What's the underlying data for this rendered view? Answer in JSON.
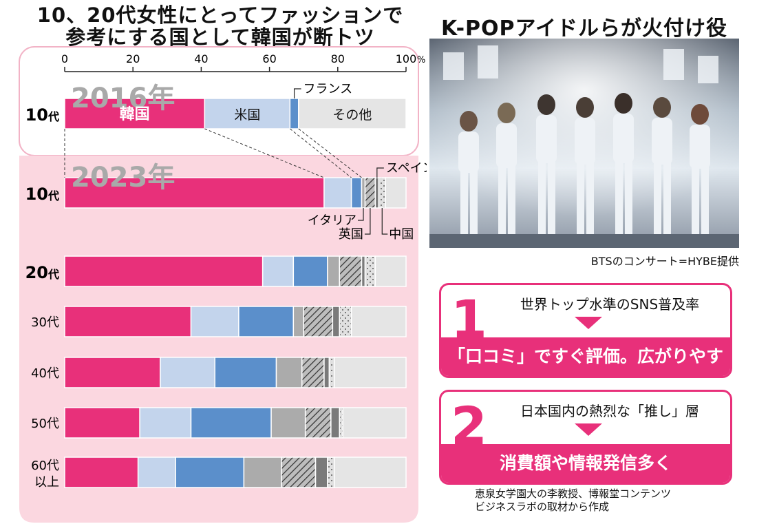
{
  "title": {
    "line1": "10、20代女性にとってファッションで",
    "line2": "参考にする国として韓国が断トツ"
  },
  "colors": {
    "korea": "#e8307a",
    "usa": "#c3d4ec",
    "france": "#5b8fcb",
    "italy": "#ababab",
    "uk": "#9a9a9a",
    "china": "#d8d8d8",
    "other": "#e5e5e5",
    "panel": "#fbd7e0",
    "accent": "#e8307a"
  },
  "chart_data": {
    "type": "bar",
    "orientation": "horizontal",
    "stacked": true,
    "xlim": [
      0,
      100
    ],
    "x_ticks": [
      "0",
      "20",
      "40",
      "60",
      "80",
      "100"
    ],
    "x_unit": "%",
    "year_labels": [
      "2016年",
      "2023年"
    ],
    "segments": [
      "韓国",
      "米国",
      "フランス",
      "イタリア",
      "英国",
      "スペイン",
      "中国",
      "その他"
    ],
    "segment_colors": [
      "#e8307a",
      "#c3d4ec",
      "#5b8fcb",
      "#ababab",
      "#9a9a9a",
      "#7a7a7a",
      "#d8d8d8",
      "#e5e5e5"
    ],
    "segment_patterns": [
      "solid",
      "solid",
      "solid",
      "solid",
      "hatch",
      "solid",
      "dots",
      "solid"
    ],
    "rows": [
      {
        "year": "2016年",
        "label": "10",
        "suffix": "代",
        "bold": true,
        "values": [
          41,
          25,
          2.5,
          0,
          0,
          0,
          0,
          31.5
        ],
        "inline_labels": [
          "韓国",
          "米国",
          "",
          "",
          "",
          "",
          "",
          "その他"
        ]
      },
      {
        "year": "2023年",
        "label": "10",
        "suffix": "代",
        "bold": true,
        "values": [
          76,
          8,
          3,
          1,
          3,
          1,
          2,
          6
        ],
        "inline_labels": [
          "",
          "",
          "",
          "",
          "",
          "",
          "",
          ""
        ]
      },
      {
        "year": "2023年",
        "label": "20",
        "suffix": "代",
        "bold": true,
        "values": [
          58,
          9,
          10,
          3.5,
          6.5,
          1,
          3,
          9
        ],
        "inline_labels": [
          "",
          "",
          "",
          "",
          "",
          "",
          "",
          ""
        ]
      },
      {
        "year": "2023年",
        "label": "30代",
        "suffix": "",
        "bold": false,
        "values": [
          37,
          14,
          16,
          3,
          8.5,
          2,
          3.5,
          16
        ],
        "inline_labels": [
          "",
          "",
          "",
          "",
          "",
          "",
          "",
          ""
        ]
      },
      {
        "year": "2023年",
        "label": "40代",
        "suffix": "",
        "bold": false,
        "values": [
          28,
          16,
          18,
          7.5,
          6.5,
          1.5,
          1.5,
          21
        ],
        "inline_labels": [
          "",
          "",
          "",
          "",
          "",
          "",
          "",
          ""
        ]
      },
      {
        "year": "2023年",
        "label": "50代",
        "suffix": "",
        "bold": false,
        "values": [
          22,
          15,
          23.5,
          10,
          7.5,
          2.5,
          1,
          18.5
        ],
        "inline_labels": [
          "",
          "",
          "",
          "",
          "",
          "",
          "",
          ""
        ]
      },
      {
        "year": "2023年",
        "label": "60代",
        "label2": "以上",
        "suffix": "",
        "bold": false,
        "values": [
          21.5,
          11,
          20,
          11,
          10,
          3.5,
          2,
          21
        ],
        "inline_labels": [
          "",
          "",
          "",
          "",
          "",
          "",
          "",
          ""
        ]
      }
    ],
    "callouts": [
      {
        "text": "フランス",
        "row": 0,
        "segment": 2,
        "position": "above"
      },
      {
        "text": "スペイン",
        "row": 1,
        "segment": 5,
        "position": "above"
      },
      {
        "text": "イタリア",
        "row": 1,
        "segment": 3,
        "position": "below"
      },
      {
        "text": "英国",
        "row": 1,
        "segment": 4,
        "position": "below"
      },
      {
        "text": "中国",
        "row": 1,
        "segment": 6,
        "position": "below"
      }
    ]
  },
  "photo": {
    "heading": "K-POPアイドルらが火付け役",
    "caption": "BTSのコンサート=HYBE提供"
  },
  "points": [
    {
      "number": "1",
      "top": "世界トップ水準のSNS普及率",
      "bottom": "「口コミ」ですぐ評価。広がりやすく"
    },
    {
      "number": "2",
      "top": "日本国内の熱烈な「推し」層",
      "bottom": "消費額や情報発信多く"
    }
  ],
  "source": {
    "line1": "恵泉女学園大の李教授、博報堂コンテンツ",
    "line2": "ビジネスラボの取材から作成"
  }
}
